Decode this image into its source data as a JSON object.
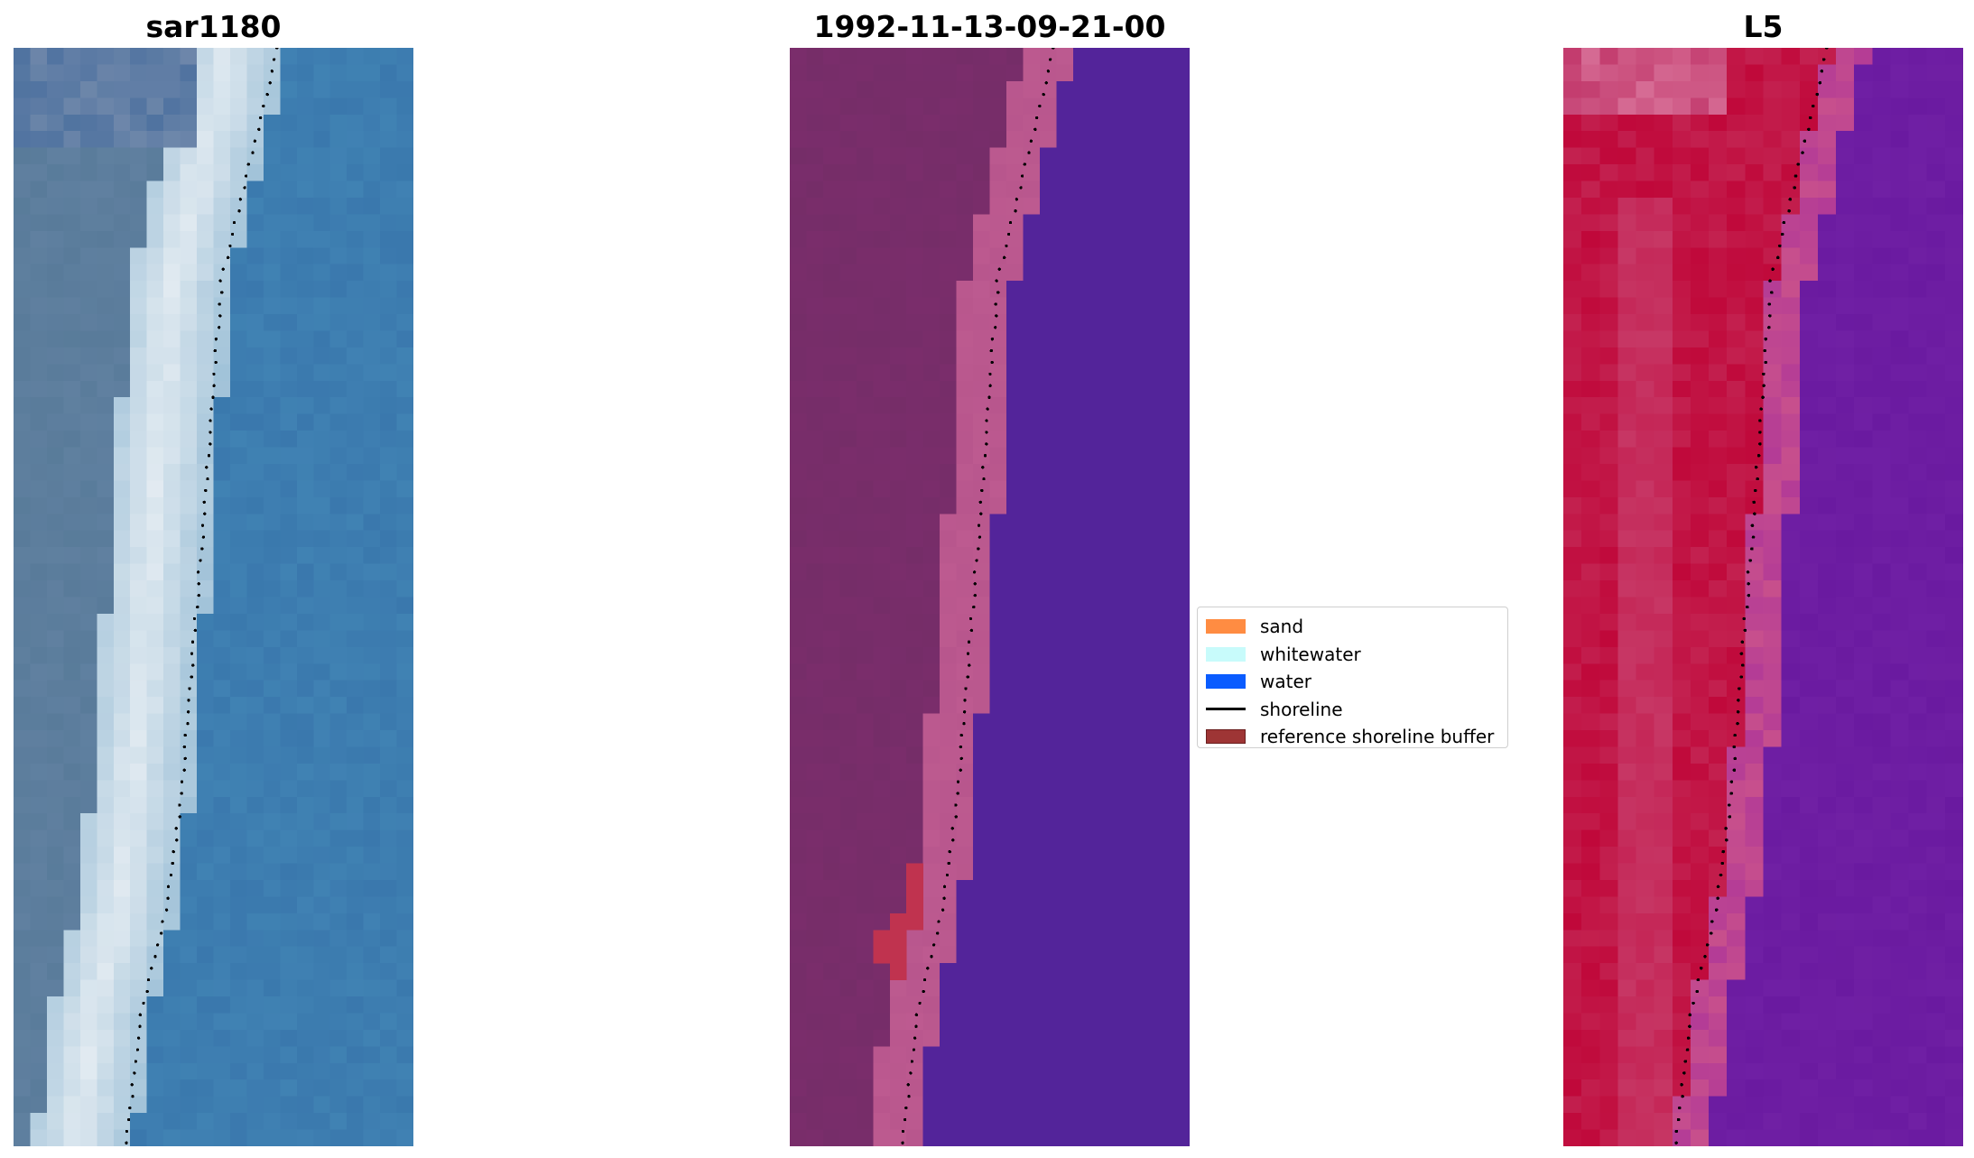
{
  "panels": [
    {
      "title": "sar1180"
    },
    {
      "title": "1992-11-13-09-21-00"
    },
    {
      "title": "L5"
    }
  ],
  "legend": {
    "items": [
      {
        "label": "sand",
        "kind": "patch",
        "color": "#ff8c42"
      },
      {
        "label": "whitewater",
        "kind": "patch",
        "color": "#c8fbfb"
      },
      {
        "label": "water",
        "kind": "patch",
        "color": "#0a5cff"
      },
      {
        "label": "shoreline",
        "kind": "line",
        "color": "#000000"
      },
      {
        "label": "reference shoreline buffer",
        "kind": "patch",
        "color": "#9e3535"
      }
    ]
  },
  "colors": {
    "rgb_water": "#3a78ad",
    "rgb_whitewater": "#e4ecf2",
    "class_land": "#7a2d6b",
    "class_water": "#53249a",
    "class_beach": "#b8568d",
    "class_buffer": "#c0334f",
    "ndwi_land": "#c0083a",
    "ndwi_water": "#6a1aa0",
    "shoreline": "#000000"
  }
}
